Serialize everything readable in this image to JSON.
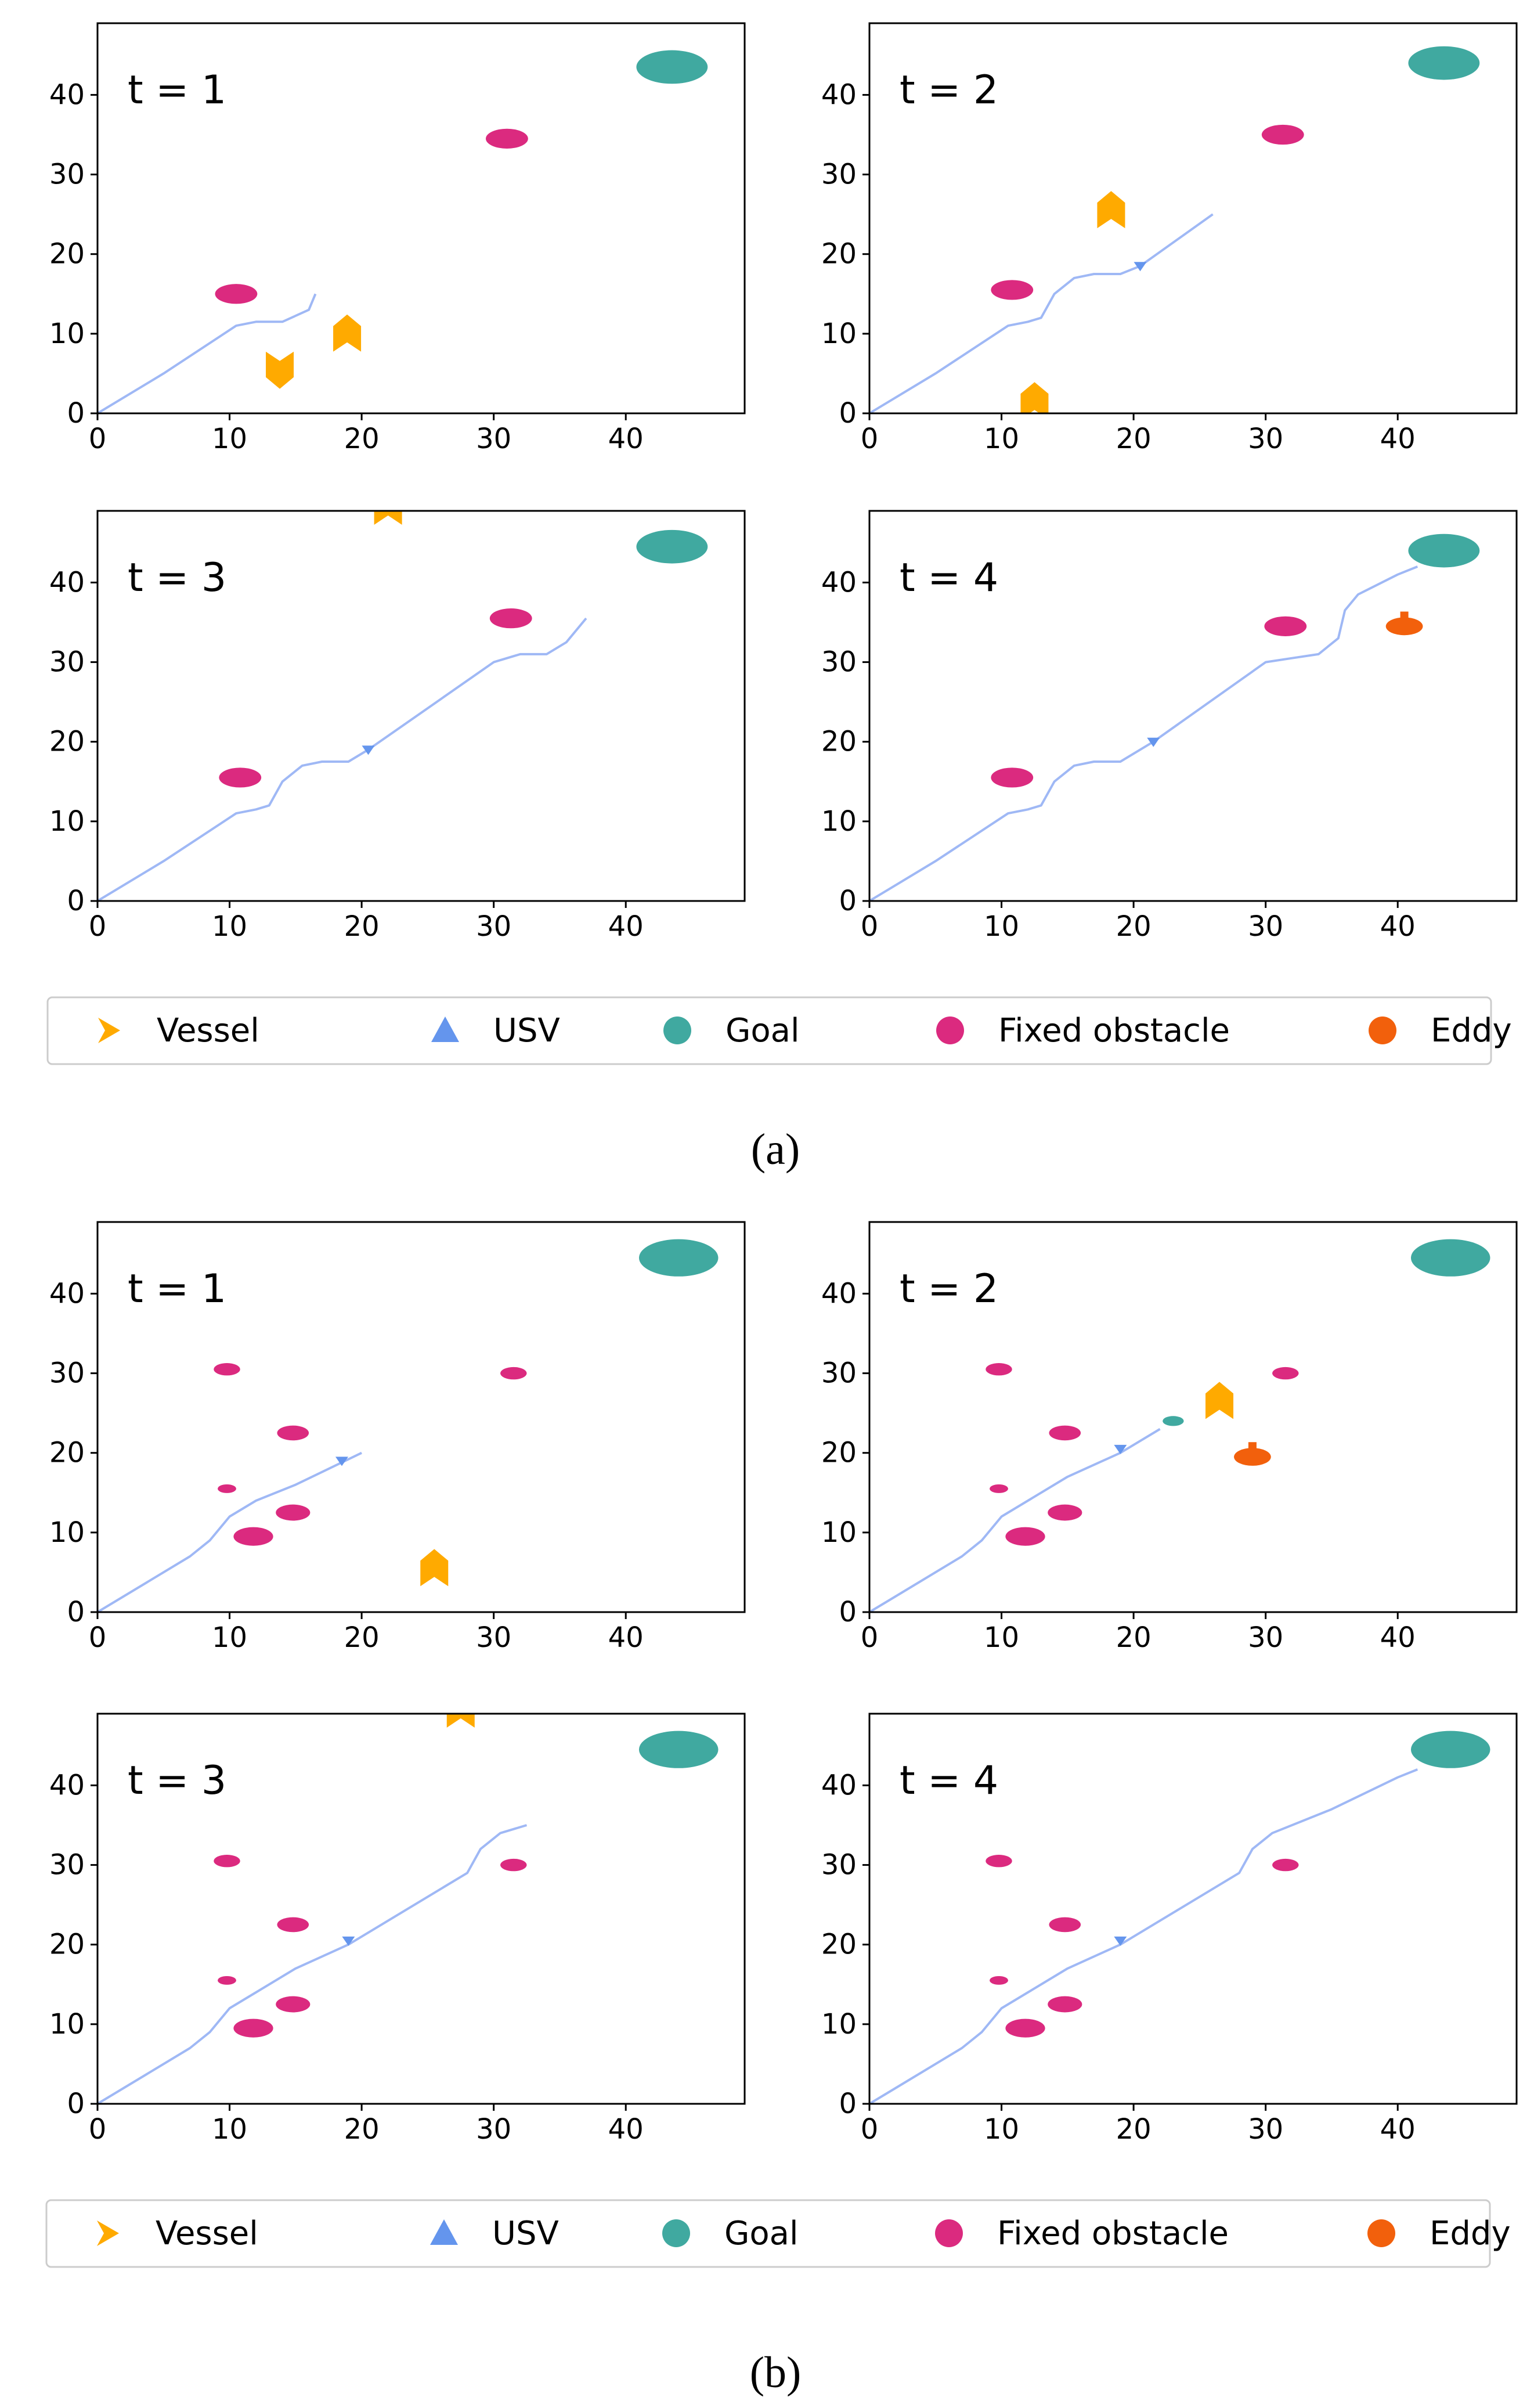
{
  "colors": {
    "vessel": "#FFAA00",
    "usv": "#6495ED",
    "goal": "#40A9A0",
    "fixed": "#DB2A7F",
    "eddy": "#F2600C",
    "path": "#9FB8F5",
    "axis": "#000000"
  },
  "legend": [
    "Vessel",
    "USV",
    "Goal",
    "Fixed obstacle",
    "Eddy"
  ],
  "chart_data": [
    {
      "group": "a",
      "caption": "(a)",
      "type": "scatter",
      "title": "t = 1",
      "xlim": [
        0,
        49
      ],
      "ylim": [
        0,
        49
      ],
      "xticks": [
        "0",
        "10",
        "20",
        "30",
        "40"
      ],
      "yticks": [
        "0",
        "10",
        "20",
        "30",
        "40"
      ],
      "goal": [
        {
          "x": 43.5,
          "y": 43.5,
          "r": 2.7
        }
      ],
      "fixed": [
        {
          "x": 10.5,
          "y": 15,
          "r": 1.6
        },
        {
          "x": 31,
          "y": 34.5,
          "r": 1.6
        }
      ],
      "eddy": [],
      "vessels": [
        {
          "x": 13.8,
          "y": 6,
          "dir": "down"
        },
        {
          "x": 18.9,
          "y": 9.5,
          "dir": "up"
        }
      ],
      "path": [
        [
          0,
          0
        ],
        [
          5,
          5
        ],
        [
          10.5,
          11
        ],
        [
          12,
          11.5
        ],
        [
          14,
          11.5
        ],
        [
          16,
          13
        ],
        [
          16.5,
          15
        ]
      ],
      "usv": null
    },
    {
      "group": "a",
      "type": "scatter",
      "title": "t = 2",
      "xlim": [
        0,
        49
      ],
      "ylim": [
        0,
        49
      ],
      "xticks": [
        "0",
        "10",
        "20",
        "30",
        "40"
      ],
      "yticks": [
        "0",
        "10",
        "20",
        "30",
        "40"
      ],
      "goal": [
        {
          "x": 43.5,
          "y": 44,
          "r": 2.7
        }
      ],
      "fixed": [
        {
          "x": 10.8,
          "y": 15.5,
          "r": 1.6
        },
        {
          "x": 31.3,
          "y": 35,
          "r": 1.6
        }
      ],
      "eddy": [],
      "vessels": [
        {
          "x": 18.3,
          "y": 25,
          "dir": "up"
        },
        {
          "x": 12.5,
          "y": 1,
          "dir": "up"
        }
      ],
      "path": [
        [
          0,
          0
        ],
        [
          5,
          5
        ],
        [
          10.5,
          11
        ],
        [
          12,
          11.5
        ],
        [
          13,
          12
        ],
        [
          14,
          15
        ],
        [
          15.5,
          17
        ],
        [
          17,
          17.5
        ],
        [
          19,
          17.5
        ],
        [
          20.5,
          18.5
        ],
        [
          26,
          25
        ]
      ],
      "usv": {
        "x": 20.5,
        "y": 18.5,
        "dir": "down"
      }
    },
    {
      "group": "a",
      "type": "scatter",
      "title": "t = 3",
      "xlim": [
        0,
        49
      ],
      "ylim": [
        0,
        49
      ],
      "xticks": [
        "0",
        "10",
        "20",
        "30",
        "40"
      ],
      "yticks": [
        "0",
        "10",
        "20",
        "30",
        "40"
      ],
      "goal": [
        {
          "x": 43.5,
          "y": 44.5,
          "r": 2.7
        }
      ],
      "fixed": [
        {
          "x": 10.8,
          "y": 15.5,
          "r": 1.6
        },
        {
          "x": 31.3,
          "y": 35.5,
          "r": 1.6
        }
      ],
      "eddy": [],
      "vessels": [
        {
          "x": 22,
          "y": 49,
          "dir": "up"
        }
      ],
      "path": [
        [
          0,
          0
        ],
        [
          5,
          5
        ],
        [
          10.5,
          11
        ],
        [
          12,
          11.5
        ],
        [
          13,
          12
        ],
        [
          14,
          15
        ],
        [
          15.5,
          17
        ],
        [
          17,
          17.5
        ],
        [
          19,
          17.5
        ],
        [
          20.5,
          19
        ],
        [
          30,
          30
        ],
        [
          32,
          31
        ],
        [
          34,
          31
        ],
        [
          35.5,
          32.5
        ],
        [
          37,
          35.5
        ]
      ],
      "usv": {
        "x": 20.5,
        "y": 19,
        "dir": "down"
      }
    },
    {
      "group": "a",
      "type": "scatter",
      "title": "t = 4",
      "xlim": [
        0,
        49
      ],
      "ylim": [
        0,
        49
      ],
      "xticks": [
        "0",
        "10",
        "20",
        "30",
        "40"
      ],
      "yticks": [
        "0",
        "10",
        "20",
        "30",
        "40"
      ],
      "goal": [
        {
          "x": 43.5,
          "y": 44,
          "r": 2.7
        }
      ],
      "fixed": [
        {
          "x": 10.8,
          "y": 15.5,
          "r": 1.6
        },
        {
          "x": 31.5,
          "y": 34.5,
          "r": 1.6
        }
      ],
      "eddy": [
        {
          "x": 40.5,
          "y": 34.5,
          "r": 1.4
        }
      ],
      "vessels": [],
      "path": [
        [
          0,
          0
        ],
        [
          5,
          5
        ],
        [
          10.5,
          11
        ],
        [
          12,
          11.5
        ],
        [
          13,
          12
        ],
        [
          14,
          15
        ],
        [
          15.5,
          17
        ],
        [
          17,
          17.5
        ],
        [
          19,
          17.5
        ],
        [
          21.5,
          20
        ],
        [
          30,
          30
        ],
        [
          32,
          30.5
        ],
        [
          34,
          31
        ],
        [
          35.5,
          33
        ],
        [
          36,
          36.5
        ],
        [
          37,
          38.5
        ],
        [
          40,
          41
        ],
        [
          41.5,
          42
        ]
      ],
      "usv": {
        "x": 21.5,
        "y": 20,
        "dir": "down"
      }
    },
    {
      "group": "b",
      "caption": "(b)",
      "type": "scatter",
      "title": "t = 1",
      "xlim": [
        0,
        49
      ],
      "ylim": [
        0,
        49
      ],
      "xticks": [
        "0",
        "10",
        "20",
        "30",
        "40"
      ],
      "yticks": [
        "0",
        "10",
        "20",
        "30",
        "40"
      ],
      "goal": [
        {
          "x": 44,
          "y": 44.5,
          "r": 3.0
        }
      ],
      "fixed": [
        {
          "x": 9.8,
          "y": 30.5,
          "r": 1.0
        },
        {
          "x": 14.8,
          "y": 22.5,
          "r": 1.2
        },
        {
          "x": 9.8,
          "y": 15.5,
          "r": 0.7
        },
        {
          "x": 14.8,
          "y": 12.5,
          "r": 1.3
        },
        {
          "x": 11.8,
          "y": 9.5,
          "r": 1.5
        },
        {
          "x": 31.5,
          "y": 30,
          "r": 1.0
        }
      ],
      "eddy": [],
      "vessels": [
        {
          "x": 25.5,
          "y": 5,
          "dir": "up"
        }
      ],
      "path": [
        [
          0,
          0
        ],
        [
          3,
          3
        ],
        [
          7,
          7
        ],
        [
          8.5,
          9
        ],
        [
          10,
          12
        ],
        [
          12,
          14
        ],
        [
          15,
          16
        ],
        [
          20,
          20
        ]
      ],
      "usv": {
        "x": 18.5,
        "y": 19,
        "dir": "down"
      }
    },
    {
      "group": "b",
      "type": "scatter",
      "title": "t = 2",
      "xlim": [
        0,
        49
      ],
      "ylim": [
        0,
        49
      ],
      "xticks": [
        "0",
        "10",
        "20",
        "30",
        "40"
      ],
      "yticks": [
        "0",
        "10",
        "20",
        "30",
        "40"
      ],
      "goal": [
        {
          "x": 44,
          "y": 44.5,
          "r": 3.0
        },
        {
          "x": 23,
          "y": 24,
          "r": 0.8
        }
      ],
      "fixed": [
        {
          "x": 9.8,
          "y": 30.5,
          "r": 1.0
        },
        {
          "x": 14.8,
          "y": 22.5,
          "r": 1.2
        },
        {
          "x": 9.8,
          "y": 15.5,
          "r": 0.7
        },
        {
          "x": 14.8,
          "y": 12.5,
          "r": 1.3
        },
        {
          "x": 11.8,
          "y": 9.5,
          "r": 1.5
        },
        {
          "x": 31.5,
          "y": 30,
          "r": 1.0
        }
      ],
      "eddy": [
        {
          "x": 29,
          "y": 19.5,
          "r": 1.4
        }
      ],
      "vessels": [
        {
          "x": 26.5,
          "y": 26,
          "dir": "up"
        }
      ],
      "path": [
        [
          0,
          0
        ],
        [
          3,
          3
        ],
        [
          7,
          7
        ],
        [
          8.5,
          9
        ],
        [
          10,
          12
        ],
        [
          12,
          14
        ],
        [
          15,
          17
        ],
        [
          19,
          20
        ],
        [
          22,
          23
        ]
      ],
      "usv": {
        "x": 19,
        "y": 20.5,
        "dir": "down"
      }
    },
    {
      "group": "b",
      "type": "scatter",
      "title": "t = 3",
      "xlim": [
        0,
        49
      ],
      "ylim": [
        0,
        49
      ],
      "xticks": [
        "0",
        "10",
        "20",
        "30",
        "40"
      ],
      "yticks": [
        "0",
        "10",
        "20",
        "30",
        "40"
      ],
      "goal": [
        {
          "x": 44,
          "y": 44.5,
          "r": 3.0
        }
      ],
      "fixed": [
        {
          "x": 9.8,
          "y": 30.5,
          "r": 1.0
        },
        {
          "x": 14.8,
          "y": 22.5,
          "r": 1.2
        },
        {
          "x": 9.8,
          "y": 15.5,
          "r": 0.7
        },
        {
          "x": 14.8,
          "y": 12.5,
          "r": 1.3
        },
        {
          "x": 11.8,
          "y": 9.5,
          "r": 1.5
        },
        {
          "x": 31.5,
          "y": 30,
          "r": 1.0
        }
      ],
      "eddy": [],
      "vessels": [
        {
          "x": 27.5,
          "y": 49,
          "dir": "up"
        }
      ],
      "path": [
        [
          0,
          0
        ],
        [
          3,
          3
        ],
        [
          7,
          7
        ],
        [
          8.5,
          9
        ],
        [
          10,
          12
        ],
        [
          12,
          14
        ],
        [
          15,
          17
        ],
        [
          19,
          20
        ],
        [
          28,
          29
        ],
        [
          29,
          32
        ],
        [
          30.5,
          34
        ],
        [
          32.5,
          35
        ]
      ],
      "usv": {
        "x": 19,
        "y": 20.5,
        "dir": "down"
      }
    },
    {
      "group": "b",
      "type": "scatter",
      "title": "t = 4",
      "xlim": [
        0,
        49
      ],
      "ylim": [
        0,
        49
      ],
      "xticks": [
        "0",
        "10",
        "20",
        "30",
        "40"
      ],
      "yticks": [
        "0",
        "10",
        "20",
        "30",
        "40"
      ],
      "goal": [
        {
          "x": 44,
          "y": 44.5,
          "r": 3.0
        }
      ],
      "fixed": [
        {
          "x": 9.8,
          "y": 30.5,
          "r": 1.0
        },
        {
          "x": 14.8,
          "y": 22.5,
          "r": 1.2
        },
        {
          "x": 9.8,
          "y": 15.5,
          "r": 0.7
        },
        {
          "x": 14.8,
          "y": 12.5,
          "r": 1.3
        },
        {
          "x": 11.8,
          "y": 9.5,
          "r": 1.5
        },
        {
          "x": 31.5,
          "y": 30,
          "r": 1.0
        }
      ],
      "eddy": [],
      "vessels": [],
      "path": [
        [
          0,
          0
        ],
        [
          3,
          3
        ],
        [
          7,
          7
        ],
        [
          8.5,
          9
        ],
        [
          10,
          12
        ],
        [
          12,
          14
        ],
        [
          15,
          17
        ],
        [
          19,
          20
        ],
        [
          28,
          29
        ],
        [
          29,
          32
        ],
        [
          30.5,
          34
        ],
        [
          35,
          37
        ],
        [
          40,
          41
        ],
        [
          41.5,
          42
        ]
      ],
      "usv": {
        "x": 19,
        "y": 20.5,
        "dir": "down"
      }
    }
  ]
}
